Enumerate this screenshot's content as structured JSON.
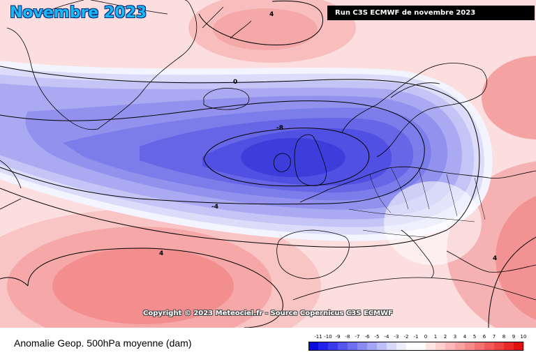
{
  "header": {
    "title": "Novembre 2023",
    "run_label": "Run C3S ECMWF de novembre 2023"
  },
  "map": {
    "contour_labels": [
      "4",
      "0",
      "-8",
      "-4",
      "4",
      "4"
    ],
    "copyright": "Copyright © 2023 Meteociel.fr - Source Copernicus C3S ECMWF"
  },
  "footer": {
    "caption": "Anomalie Geop. 500hPa moyenne (dam)"
  },
  "legend": {
    "ticks": [
      "-11",
      "-10",
      "-9",
      "-8",
      "-7",
      "-6",
      "-5",
      "-4",
      "-3",
      "-2",
      "-1",
      "0",
      "1",
      "2",
      "3",
      "4",
      "5",
      "6",
      "7",
      "8",
      "9",
      "10"
    ],
    "colors": [
      "#0a0adc",
      "#2222e8",
      "#3b3bee",
      "#5555f0",
      "#6f6ff2",
      "#8a8af4",
      "#a4a4f6",
      "#bebef8",
      "#d8d8fb",
      "#ececfd",
      "#ffffff",
      "#ffffff",
      "#ffe4e4",
      "#ffcece",
      "#fcb8b8",
      "#faa2a2",
      "#f78a8a",
      "#f47272",
      "#f05a5a",
      "#ec4242",
      "#e82828",
      "#e01010"
    ]
  }
}
